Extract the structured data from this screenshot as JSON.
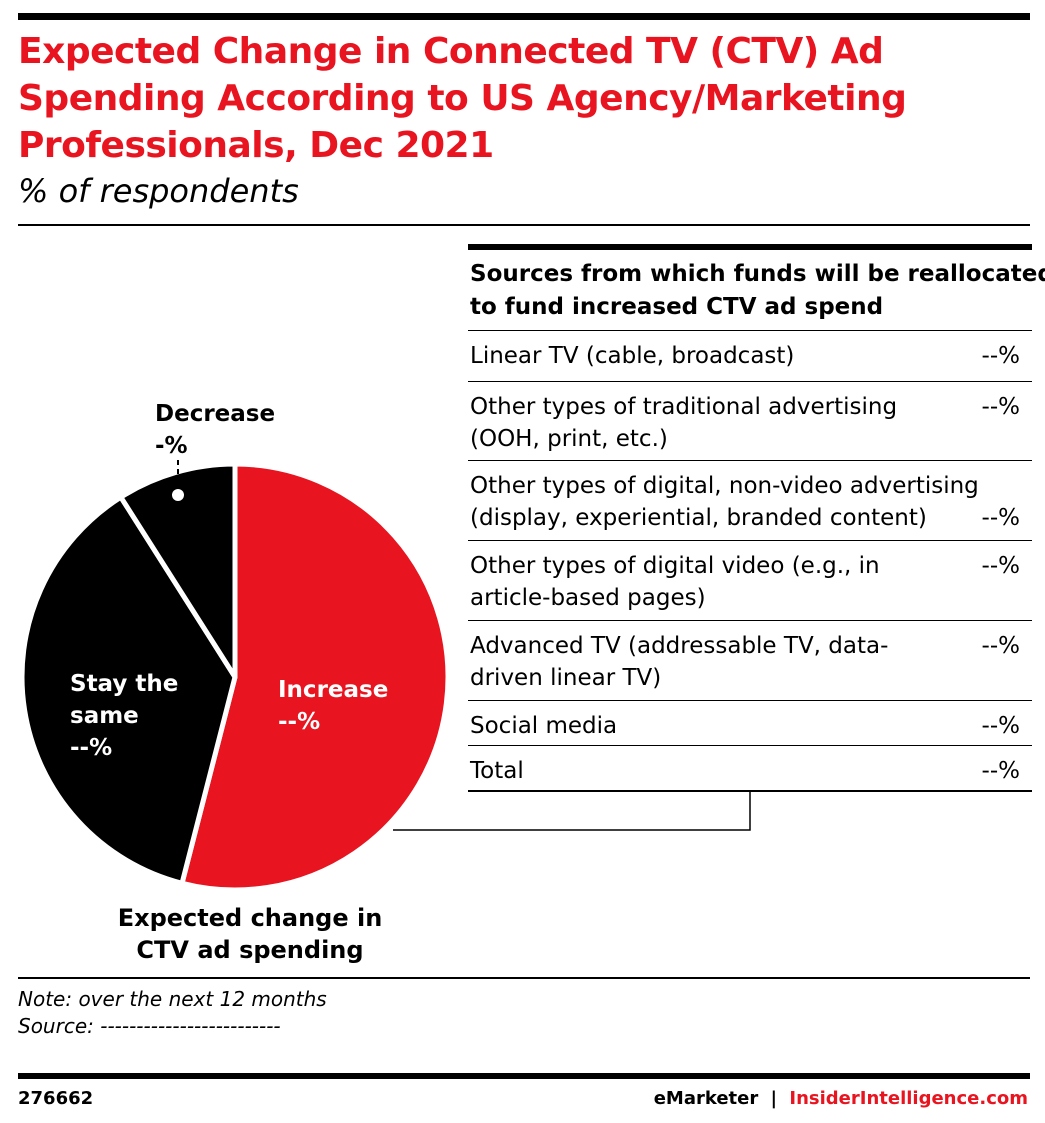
{
  "header": {
    "title": "Expected Change in Connected TV (CTV) Ad Spending According to US Agency/Marketing Professionals, Dec 2021",
    "subtitle": "% of respondents"
  },
  "chart_data": {
    "type": "pie",
    "title": "Expected change in CTV ad spending",
    "categories": [
      "Increase",
      "Stay the same",
      "Decrease"
    ],
    "values": [
      54,
      37,
      9
    ],
    "value_labels": [
      "--%",
      "--%",
      "-%"
    ],
    "colors": [
      "#e8141f",
      "#000000",
      "#000000"
    ]
  },
  "table": {
    "header": "Sources from which funds will be reallocated to fund increased CTV ad spend",
    "rows": [
      [
        "Linear TV (cable, broadcast)",
        "--%"
      ],
      [
        "Other types of traditional advertising (OOH, print, etc.)",
        "--%"
      ],
      [
        "Other types of digital, non-video advertising (display, experiential, branded content)",
        "--%"
      ],
      [
        "Other types of digital video  (e.g., in article-based pages)",
        "--%"
      ],
      [
        "Advanced TV (addressable TV, data-driven linear TV)",
        "--%"
      ],
      [
        "Social media",
        "--%"
      ],
      [
        "Total",
        "--%"
      ]
    ]
  },
  "footer": {
    "note": "Note: over the next 12 months",
    "source": "Source: -------------------------",
    "id": "276662",
    "brand": "eMarketer",
    "separator": "|",
    "site": "InsiderIntelligence.com"
  }
}
